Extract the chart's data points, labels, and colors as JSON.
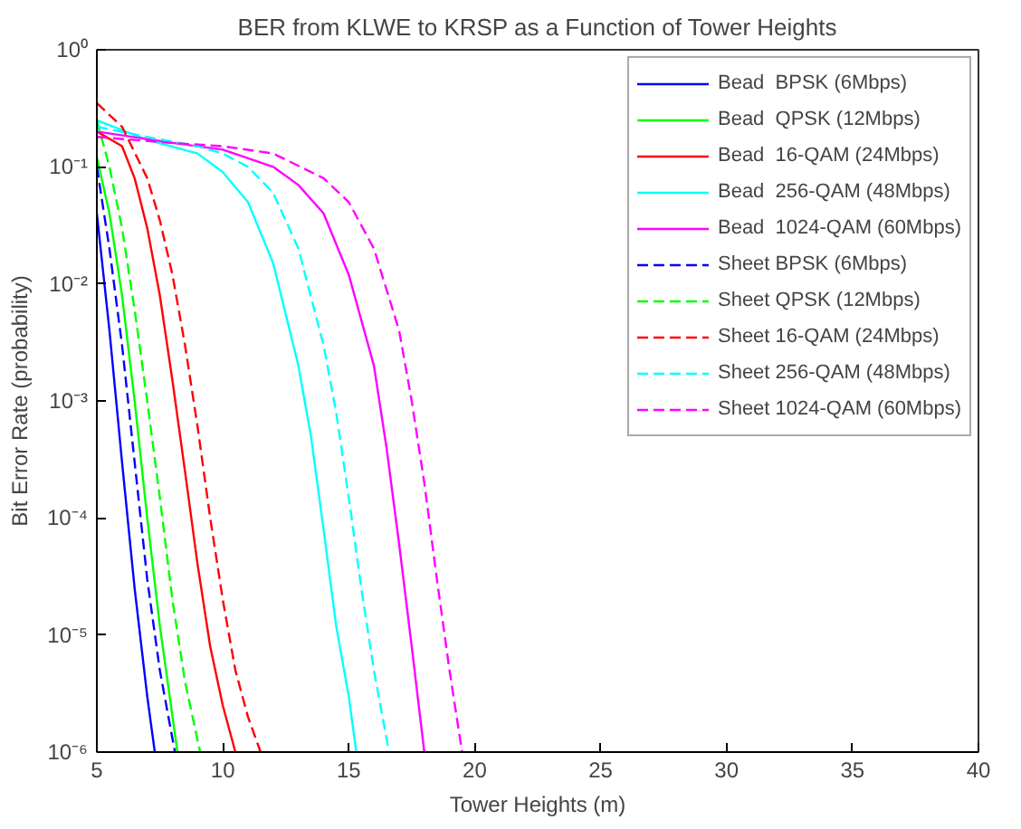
{
  "chart_data": {
    "type": "line",
    "title": "BER from KLWE to KRSP as a Function of Tower Heights",
    "xlabel": "Tower Heights (m)",
    "ylabel": "Bit Error Rate (probability)",
    "log": "y",
    "grid": false,
    "legend": "top right",
    "marker": "none",
    "xlim": [
      5,
      40
    ],
    "xticks": [
      5,
      10,
      15,
      20,
      25,
      30,
      35,
      40
    ],
    "ylim": [
      1e-06,
      1
    ],
    "yticks": [
      {
        "value": 1e-06,
        "label": "10⁻⁶"
      },
      {
        "value": 1e-05,
        "label": "10⁻⁵"
      },
      {
        "value": 0.0001,
        "label": "10⁻⁴"
      },
      {
        "value": 0.001,
        "label": "10⁻³"
      },
      {
        "value": 0.01,
        "label": "10⁻²"
      },
      {
        "value": 0.1,
        "label": "10⁻¹"
      },
      {
        "value": 1,
        "label": "10⁰"
      }
    ],
    "series": [
      {
        "name": "Bead  BPSK (6Mbps)",
        "color": "#0000ff",
        "line_style": "solid",
        "x": [
          5,
          5.5,
          6,
          6.5,
          7,
          7.3
        ],
        "values": [
          0.04,
          0.004,
          0.0003,
          2.5e-05,
          3e-06,
          1e-06
        ]
      },
      {
        "name": "Bead  QPSK (12Mbps)",
        "color": "#00ff00",
        "line_style": "solid",
        "x": [
          5,
          5.5,
          6,
          6.5,
          7,
          7.5,
          8.2
        ],
        "values": [
          0.12,
          0.04,
          0.008,
          0.001,
          0.0001,
          1.2e-05,
          1e-06
        ]
      },
      {
        "name": "Bead  16-QAM (24Mbps)",
        "color": "#ff0000",
        "line_style": "solid",
        "x": [
          5,
          6,
          6.5,
          7,
          7.5,
          8,
          8.5,
          9,
          9.5,
          10,
          10.5
        ],
        "values": [
          0.2,
          0.15,
          0.08,
          0.03,
          0.008,
          0.0015,
          0.00025,
          4e-05,
          8e-06,
          2.5e-06,
          1e-06
        ]
      },
      {
        "name": "Bead  256-QAM (48Mbps)",
        "color": "#00ffff",
        "line_style": "solid",
        "x": [
          5,
          7,
          9,
          10,
          11,
          12,
          13,
          13.5,
          14,
          14.5,
          15,
          15.3
        ],
        "values": [
          0.25,
          0.17,
          0.13,
          0.09,
          0.05,
          0.015,
          0.002,
          0.0005,
          8e-05,
          1.2e-05,
          3e-06,
          1e-06
        ]
      },
      {
        "name": "Bead  1024-QAM (60Mbps)",
        "color": "#ff00ff",
        "line_style": "solid",
        "x": [
          5,
          8,
          10,
          12,
          13,
          14,
          15,
          16,
          16.5,
          17,
          17.5,
          18
        ],
        "values": [
          0.2,
          0.16,
          0.14,
          0.1,
          0.07,
          0.04,
          0.012,
          0.002,
          0.0004,
          6e-05,
          8e-06,
          1e-06
        ]
      },
      {
        "name": "Sheet BPSK (6Mbps)",
        "color": "#0000ff",
        "line_style": "dashed",
        "x": [
          5,
          5.5,
          6,
          6.5,
          7,
          7.5,
          8.1
        ],
        "values": [
          0.1,
          0.02,
          0.003,
          0.0003,
          3e-05,
          5e-06,
          1e-06
        ]
      },
      {
        "name": "Sheet QPSK (12Mbps)",
        "color": "#00ff00",
        "line_style": "dashed",
        "x": [
          5,
          5.5,
          6,
          6.5,
          7,
          7.5,
          8,
          8.5,
          9.1
        ],
        "values": [
          0.25,
          0.1,
          0.03,
          0.006,
          0.001,
          0.00015,
          2e-05,
          4e-06,
          1e-06
        ]
      },
      {
        "name": "Sheet 16-QAM (24Mbps)",
        "color": "#ff0000",
        "line_style": "dashed",
        "x": [
          5,
          6,
          7,
          7.5,
          8,
          8.5,
          9,
          9.5,
          10,
          10.5,
          11,
          11.5
        ],
        "values": [
          0.35,
          0.22,
          0.08,
          0.035,
          0.012,
          0.003,
          0.0006,
          0.0001,
          2e-05,
          5e-06,
          2e-06,
          1e-06
        ]
      },
      {
        "name": "Sheet 256-QAM (48Mbps)",
        "color": "#00ffff",
        "line_style": "dashed",
        "x": [
          5,
          7,
          9,
          10,
          11,
          12,
          13,
          14,
          14.5,
          15,
          15.5,
          16,
          16.6
        ],
        "values": [
          0.22,
          0.18,
          0.15,
          0.13,
          0.1,
          0.06,
          0.02,
          0.003,
          0.0008,
          0.00015,
          2.5e-05,
          5e-06,
          1e-06
        ]
      },
      {
        "name": "Sheet 1024-QAM (60Mbps)",
        "color": "#ff00ff",
        "line_style": "dashed",
        "x": [
          5,
          8,
          10,
          12,
          14,
          15,
          16,
          17,
          17.5,
          18,
          18.5,
          19,
          19.5
        ],
        "values": [
          0.18,
          0.16,
          0.15,
          0.13,
          0.08,
          0.05,
          0.02,
          0.004,
          0.001,
          0.0002,
          3e-05,
          5e-06,
          1e-06
        ]
      }
    ]
  }
}
